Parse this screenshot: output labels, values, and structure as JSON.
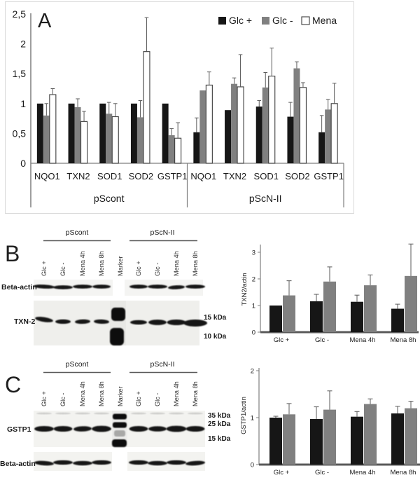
{
  "figure": {
    "panel_a_label": "A",
    "panel_b_label": "B",
    "panel_c_label": "C"
  },
  "colors": {
    "bar_black": "#161616",
    "bar_gray": "#808080",
    "bar_white": "#ffffff",
    "bar_white_border": "#3d3d3d",
    "axis": "#7f7f7f",
    "baseline_thick": "#595959",
    "error_bar": "#5a5a5a",
    "text": "#1a1a1a",
    "panel_border": "#d9d9d9",
    "strip_bg_light": "#f4f4f2",
    "strip_bg_mid": "#efefec",
    "band": "#141414"
  },
  "chart_data": [
    {
      "id": "panelA",
      "type": "bar",
      "legend": [
        "Glc +",
        "Glc -",
        "Mena"
      ],
      "legend_position": "top-right",
      "groups": [
        "pScont",
        "pScN-II"
      ],
      "categories": [
        "NQO1",
        "TXN2",
        "SOD1",
        "SOD2",
        "GSTP1",
        "NQO1",
        "TXN2",
        "SOD1",
        "SOD2",
        "GSTP1"
      ],
      "y_ticks": [
        "0",
        "0,5",
        "1",
        "1,5",
        "2",
        "2,5"
      ],
      "ylim": [
        0,
        2.5
      ],
      "grid": false,
      "series": [
        {
          "name": "Glc +",
          "values": [
            1.0,
            1.0,
            1.0,
            1.0,
            1.0,
            0.52,
            0.89,
            0.95,
            0.78,
            0.52
          ],
          "errors": [
            0,
            0,
            0,
            0,
            0,
            0.24,
            0,
            0.1,
            0.24,
            0.28
          ]
        },
        {
          "name": "Glc -",
          "values": [
            0.8,
            0.94,
            0.83,
            0.77,
            0.47,
            1.22,
            1.33,
            1.27,
            1.59,
            0.9
          ],
          "errors": [
            0.2,
            0.14,
            0.19,
            0.28,
            0.11,
            0,
            0.1,
            0.25,
            0.11,
            0.17
          ]
        },
        {
          "name": "Mena",
          "values": [
            1.15,
            0.7,
            0.78,
            1.87,
            0.42,
            1.31,
            1.28,
            1.46,
            1.27,
            1.0
          ],
          "errors": [
            0.1,
            0.17,
            0.22,
            0.57,
            0.26,
            0.22,
            0.54,
            0.47,
            0.08,
            0.34
          ]
        }
      ]
    },
    {
      "id": "panelB",
      "type": "bar",
      "ylabel": "TXN2/actin",
      "categories": [
        "Glc +",
        "Glc -",
        "Mena 4h",
        "Mena 8h"
      ],
      "y_ticks": [
        "0",
        "1",
        "2",
        "3"
      ],
      "ylim": [
        0,
        3
      ],
      "grid": false,
      "series": [
        {
          "name": "black",
          "values": [
            1.0,
            1.16,
            1.14,
            0.88
          ],
          "errors": [
            0,
            0.26,
            0.25,
            0.17
          ]
        },
        {
          "name": "gray",
          "values": [
            1.38,
            1.9,
            1.76,
            2.11
          ],
          "errors": [
            0.55,
            0.55,
            0.39,
            1.2
          ]
        }
      ]
    },
    {
      "id": "panelC",
      "type": "bar",
      "ylabel": "GSTP1/actin",
      "categories": [
        "Glc +",
        "Glc -",
        "Mena 4h",
        "Mena 8h"
      ],
      "y_ticks": [
        "0",
        "1",
        "2"
      ],
      "ylim": [
        0,
        2
      ],
      "grid": false,
      "series": [
        {
          "name": "black",
          "values": [
            1.0,
            0.97,
            1.02,
            1.09
          ],
          "errors": [
            0.03,
            0.26,
            0.11,
            0.15
          ]
        },
        {
          "name": "gray",
          "values": [
            1.07,
            1.17,
            1.29,
            1.2
          ],
          "errors": [
            0.23,
            0.4,
            0.11,
            0.15
          ]
        }
      ]
    }
  ],
  "blot_b": {
    "group_labels": [
      "pScont",
      "pScN-II"
    ],
    "lane_labels": [
      "Glc +",
      "Glc -",
      "Mena 4h",
      "Mena 8h",
      "Marker",
      "Glc +",
      "Glc -",
      "Mena 4h",
      "Mena 8h"
    ],
    "row_labels": [
      "Beta-actin",
      "TXN-2"
    ],
    "kda_labels": [
      "15 kDa",
      "10 kDa"
    ]
  },
  "blot_c": {
    "group_labels": [
      "pScont",
      "pScN-II"
    ],
    "lane_labels": [
      "Glc +",
      "Glc -",
      "Mena 4h",
      "Mena 8h",
      "Marker",
      "Glc +",
      "Glc -",
      "Mena 4h",
      "Mena 8h"
    ],
    "row_labels": [
      "GSTP1",
      "Beta-actin"
    ],
    "kda_labels": [
      "35 kDa",
      "25 kDa",
      "15 kDa"
    ]
  }
}
